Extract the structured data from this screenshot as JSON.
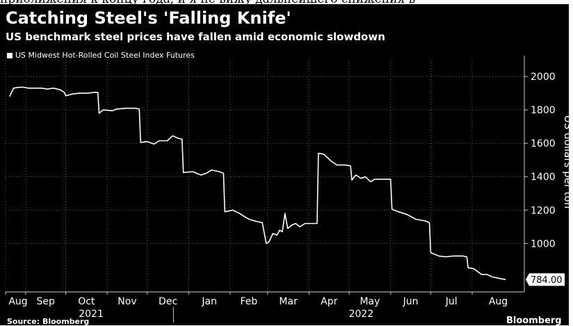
{
  "top_text": "приближения к концу года, и я не вижу дальнейшего снижения в",
  "header": {
    "title": "Catching Steel's 'Falling Knife'",
    "subtitle": "US benchmark steel prices have fallen amid economic slowdown"
  },
  "footer": {
    "source": "Source: Bloomberg",
    "brand": "Bloomberg"
  },
  "colors": {
    "background": "#000000",
    "line": "#ffffff",
    "text": "#ffffff",
    "axis": "#cccccc"
  },
  "chart_data": {
    "type": "line",
    "series": [
      {
        "name": "US Midwest Hot-Rolled Coil Steel Index Futures",
        "points": [
          [
            "2021-08-20",
            1880
          ],
          [
            "2021-08-23",
            1930
          ],
          [
            "2021-08-27",
            1935
          ],
          [
            "2021-08-31",
            1935
          ],
          [
            "2021-09-03",
            1930
          ],
          [
            "2021-09-08",
            1930
          ],
          [
            "2021-09-13",
            1930
          ],
          [
            "2021-09-17",
            1925
          ],
          [
            "2021-09-22",
            1930
          ],
          [
            "2021-09-27",
            1920
          ],
          [
            "2021-09-30",
            1905
          ],
          [
            "2021-10-01",
            1885
          ],
          [
            "2021-10-06",
            1895
          ],
          [
            "2021-10-11",
            1900
          ],
          [
            "2021-10-17",
            1900
          ],
          [
            "2021-10-22",
            1905
          ],
          [
            "2021-10-25",
            1905
          ],
          [
            "2021-10-26",
            1780
          ],
          [
            "2021-10-29",
            1800
          ],
          [
            "2021-11-05",
            1795
          ],
          [
            "2021-11-08",
            1805
          ],
          [
            "2021-11-15",
            1810
          ],
          [
            "2021-11-22",
            1810
          ],
          [
            "2021-11-25",
            1805
          ],
          [
            "2021-11-26",
            1605
          ],
          [
            "2021-12-01",
            1610
          ],
          [
            "2021-12-06",
            1595
          ],
          [
            "2021-12-10",
            1615
          ],
          [
            "2021-12-16",
            1615
          ],
          [
            "2021-12-20",
            1645
          ],
          [
            "2021-12-24",
            1630
          ],
          [
            "2021-12-27",
            1625
          ],
          [
            "2021-12-28",
            1425
          ],
          [
            "2022-01-04",
            1430
          ],
          [
            "2022-01-10",
            1410
          ],
          [
            "2022-01-14",
            1420
          ],
          [
            "2022-01-18",
            1440
          ],
          [
            "2022-01-24",
            1430
          ],
          [
            "2022-01-27",
            1420
          ],
          [
            "2022-01-28",
            1190
          ],
          [
            "2022-02-03",
            1200
          ],
          [
            "2022-02-08",
            1180
          ],
          [
            "2022-02-14",
            1150
          ],
          [
            "2022-02-17",
            1140
          ],
          [
            "2022-02-22",
            1130
          ],
          [
            "2022-02-25",
            1125
          ],
          [
            "2022-02-28",
            1000
          ],
          [
            "2022-03-02",
            1010
          ],
          [
            "2022-03-05",
            1060
          ],
          [
            "2022-03-08",
            1050
          ],
          [
            "2022-03-10",
            1080
          ],
          [
            "2022-03-12",
            1070
          ],
          [
            "2022-03-14",
            1180
          ],
          [
            "2022-03-16",
            1090
          ],
          [
            "2022-03-19",
            1110
          ],
          [
            "2022-03-22",
            1120
          ],
          [
            "2022-03-25",
            1100
          ],
          [
            "2022-03-29",
            1120
          ],
          [
            "2022-04-02",
            1120
          ],
          [
            "2022-04-07",
            1120
          ],
          [
            "2022-04-08",
            1540
          ],
          [
            "2022-04-12",
            1535
          ],
          [
            "2022-04-18",
            1490
          ],
          [
            "2022-04-22",
            1470
          ],
          [
            "2022-04-28",
            1470
          ],
          [
            "2022-05-02",
            1465
          ],
          [
            "2022-05-03",
            1380
          ],
          [
            "2022-05-06",
            1410
          ],
          [
            "2022-05-10",
            1390
          ],
          [
            "2022-05-13",
            1400
          ],
          [
            "2022-05-17",
            1370
          ],
          [
            "2022-05-20",
            1385
          ],
          [
            "2022-05-27",
            1385
          ],
          [
            "2022-06-01",
            1385
          ],
          [
            "2022-06-02",
            1205
          ],
          [
            "2022-06-07",
            1190
          ],
          [
            "2022-06-13",
            1175
          ],
          [
            "2022-06-20",
            1145
          ],
          [
            "2022-06-27",
            1135
          ],
          [
            "2022-06-30",
            1125
          ],
          [
            "2022-07-01",
            945
          ],
          [
            "2022-07-07",
            925
          ],
          [
            "2022-07-12",
            920
          ],
          [
            "2022-07-18",
            925
          ],
          [
            "2022-07-25",
            925
          ],
          [
            "2022-07-28",
            920
          ],
          [
            "2022-07-29",
            855
          ],
          [
            "2022-08-02",
            850
          ],
          [
            "2022-08-08",
            815
          ],
          [
            "2022-08-12",
            815
          ],
          [
            "2022-08-16",
            800
          ],
          [
            "2022-08-22",
            790
          ],
          [
            "2022-08-26",
            784
          ]
        ]
      }
    ],
    "last_value_label": "784.00",
    "ylabel": "US dollars per ton",
    "ylim": [
      710,
      2100
    ],
    "yticks": [
      1000,
      1200,
      1400,
      1600,
      1800,
      2000
    ],
    "y_tick_labels": [
      "1000",
      "1200",
      "1400",
      "1600",
      "1800",
      "2000"
    ],
    "xlim": [
      "2021-08-17",
      "2022-09-09"
    ],
    "x_ticks": [
      {
        "date": "2021-08-17",
        "label": "Aug"
      },
      {
        "date": "2021-09-01",
        "label": "Sep"
      },
      {
        "date": "2021-10-01",
        "label": "Oct"
      },
      {
        "date": "2021-11-01",
        "label": "Nov"
      },
      {
        "date": "2021-12-01",
        "label": "Dec"
      },
      {
        "date": "2022-01-01",
        "label": "Jan"
      },
      {
        "date": "2022-02-01",
        "label": "Feb"
      },
      {
        "date": "2022-03-01",
        "label": "Mar"
      },
      {
        "date": "2022-04-01",
        "label": "Apr"
      },
      {
        "date": "2022-05-01",
        "label": "May"
      },
      {
        "date": "2022-06-01",
        "label": "Jun"
      },
      {
        "date": "2022-07-01",
        "label": "Jul"
      },
      {
        "date": "2022-08-01",
        "label": "Aug"
      }
    ],
    "year_labels": [
      {
        "date": "2021-10-20",
        "label": "2021"
      },
      {
        "date": "2022-05-10",
        "label": "2022"
      }
    ],
    "year_boundary": "2022-01-01",
    "grid": true,
    "legend": "top-left"
  }
}
